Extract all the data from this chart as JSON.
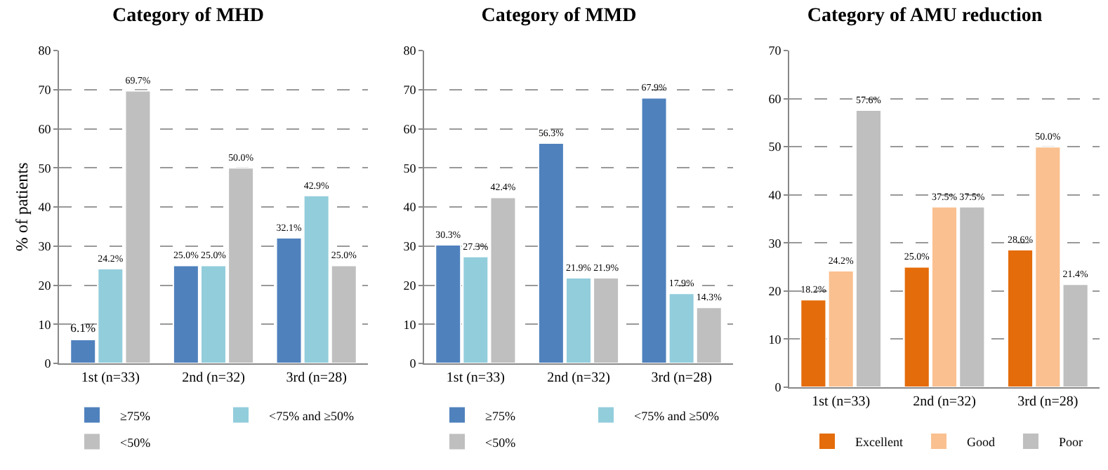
{
  "chart_data": [
    {
      "type": "bar",
      "title": "Category of MHD",
      "ylabel": "% of patients",
      "categories": [
        "1st (n=33)",
        "2nd (n=32)",
        "3rd (n=28)"
      ],
      "ylim": [
        0,
        80
      ],
      "yticks": [
        0,
        10,
        20,
        30,
        40,
        50,
        60,
        70,
        80
      ],
      "grid": "y",
      "legend": "bottom",
      "series": [
        {
          "name": "≥75%",
          "color": "#4f81bd",
          "values": [
            6.1,
            25.0,
            32.1
          ],
          "value_labels": [
            "6.1%",
            "25.0%",
            "32.1%"
          ]
        },
        {
          "name": "<75% and ≥50%",
          "color": "#92cddc",
          "values": [
            24.2,
            25.0,
            42.9
          ],
          "value_labels": [
            "24.2%",
            "25.0%",
            "42.9%"
          ]
        },
        {
          "name": "<50%",
          "color": "#bfbfbf",
          "values": [
            69.7,
            50.0,
            25.0
          ],
          "value_labels": [
            "69.7%",
            "50.0%",
            "25.0%"
          ]
        }
      ]
    },
    {
      "type": "bar",
      "title": "Category of MMD",
      "categories": [
        "1st (n=33)",
        "2nd (n=32)",
        "3rd (n=28)"
      ],
      "ylim": [
        0,
        80
      ],
      "yticks": [
        0,
        10,
        20,
        30,
        40,
        50,
        60,
        70,
        80
      ],
      "grid": "y",
      "legend": "bottom",
      "series": [
        {
          "name": "≥75%",
          "color": "#4f81bd",
          "values": [
            30.3,
            56.3,
            67.9
          ],
          "value_labels": [
            "30.3%",
            "56.3%",
            "67.9%"
          ]
        },
        {
          "name": "<75% and ≥50%",
          "color": "#92cddc",
          "values": [
            27.3,
            21.9,
            17.9
          ],
          "value_labels": [
            "27.3%",
            "21.9%",
            "17.9%"
          ]
        },
        {
          "name": "<50%",
          "color": "#bfbfbf",
          "values": [
            42.4,
            21.9,
            14.3
          ],
          "value_labels": [
            "42.4%",
            "21.9%",
            "14.3%"
          ]
        }
      ]
    },
    {
      "type": "bar",
      "title": "Category of AMU reduction",
      "categories": [
        "1st (n=33)",
        "2nd (n=32)",
        "3rd (n=28)"
      ],
      "ylim": [
        0,
        70
      ],
      "yticks": [
        0,
        10,
        20,
        30,
        40,
        50,
        60,
        70
      ],
      "grid": "y",
      "legend": "bottom",
      "series": [
        {
          "name": "Excellent",
          "color": "#e46c0a",
          "values": [
            18.2,
            25.0,
            28.6
          ],
          "value_labels": [
            "18.2%",
            "25.0%",
            "28.6%"
          ]
        },
        {
          "name": "Good",
          "color": "#fac090",
          "values": [
            24.2,
            37.5,
            50.0
          ],
          "value_labels": [
            "24.2%",
            "37.5%",
            "50.0%"
          ]
        },
        {
          "name": "Poor",
          "color": "#bfbfbf",
          "values": [
            57.6,
            37.5,
            21.4
          ],
          "value_labels": [
            "57.6%",
            "37.5%",
            "21.4%"
          ]
        }
      ]
    }
  ]
}
